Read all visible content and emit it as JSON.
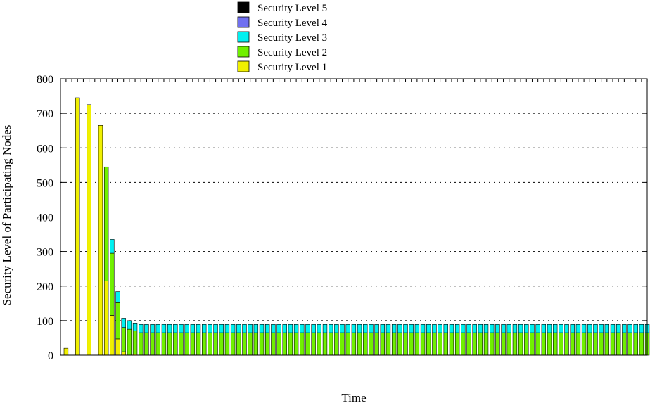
{
  "chart_data": {
    "type": "bar",
    "stacked": true,
    "xlabel": "Time",
    "ylabel": "Security Level of Participating Nodes",
    "ylim": [
      0,
      800
    ],
    "yticks": [
      0,
      100,
      200,
      300,
      400,
      500,
      600,
      700,
      800
    ],
    "grid": "horizontal dotted",
    "legend_position": "top-center",
    "series": [
      {
        "name": "Security Level 5",
        "color": "#000000",
        "values": [
          0,
          0,
          0,
          0,
          0,
          0,
          0,
          0,
          0,
          0,
          0,
          0,
          0,
          0,
          0,
          0,
          0,
          0,
          0,
          0,
          0,
          0,
          0,
          0,
          0,
          0,
          0,
          0,
          0,
          0,
          0,
          0,
          0,
          0,
          0,
          0,
          0,
          0,
          0,
          0,
          0,
          0,
          0,
          0,
          0,
          0,
          0,
          0,
          0,
          0,
          0,
          0,
          0,
          0,
          0,
          0,
          0,
          0,
          0,
          0,
          0,
          0,
          0,
          0,
          0,
          0,
          0,
          0,
          0,
          0,
          0,
          0,
          0,
          0,
          0,
          0,
          0,
          0,
          0,
          0,
          0,
          0,
          0,
          0,
          0,
          0,
          0,
          0,
          0,
          0,
          0,
          0,
          0,
          0,
          0,
          0,
          0,
          0,
          0,
          0,
          0,
          0
        ]
      },
      {
        "name": "Security Level 4",
        "color": "#7070f0",
        "values": [
          0,
          0,
          0,
          0,
          0,
          0,
          0,
          0,
          0,
          0,
          0,
          0,
          0,
          0,
          0,
          0,
          0,
          0,
          0,
          0,
          0,
          0,
          0,
          0,
          0,
          0,
          0,
          0,
          0,
          0,
          0,
          0,
          0,
          0,
          0,
          0,
          0,
          0,
          0,
          0,
          0,
          0,
          0,
          0,
          0,
          0,
          0,
          0,
          0,
          0,
          0,
          0,
          0,
          0,
          0,
          0,
          0,
          0,
          0,
          0,
          0,
          0,
          0,
          0,
          0,
          0,
          0,
          0,
          0,
          0,
          0,
          0,
          0,
          0,
          0,
          0,
          0,
          0,
          0,
          0,
          0,
          0,
          0,
          0,
          0,
          0,
          0,
          0,
          0,
          0,
          0,
          0,
          0,
          0,
          0,
          0,
          0,
          0,
          0,
          0,
          0,
          0
        ]
      },
      {
        "name": "Security Level 3",
        "color": "#00f0f0",
        "values": [
          0,
          0,
          0,
          0,
          0,
          0,
          0,
          0,
          40,
          32,
          27,
          25,
          23,
          24,
          24,
          24,
          24,
          24,
          24,
          24,
          24,
          24,
          24,
          24,
          24,
          24,
          24,
          24,
          24,
          24,
          24,
          24,
          24,
          24,
          24,
          24,
          24,
          24,
          24,
          24,
          24,
          24,
          24,
          24,
          24,
          24,
          24,
          24,
          24,
          24,
          24,
          24,
          24,
          24,
          24,
          24,
          24,
          24,
          24,
          24,
          24,
          24,
          24,
          24,
          24,
          24,
          24,
          24,
          24,
          24,
          24,
          24,
          24,
          24,
          24,
          24,
          24,
          24,
          24,
          24,
          24,
          24,
          24,
          24,
          24,
          24,
          24,
          24,
          24,
          24,
          24,
          24,
          24,
          24,
          24,
          24,
          24,
          24,
          24,
          24,
          24,
          24
        ]
      },
      {
        "name": "Security Level 2",
        "color": "#70f000",
        "values": [
          0,
          0,
          0,
          0,
          0,
          0,
          0,
          330,
          180,
          105,
          70,
          75,
          67,
          65,
          65,
          65,
          65,
          65,
          65,
          65,
          65,
          65,
          65,
          65,
          65,
          65,
          65,
          65,
          65,
          65,
          65,
          65,
          65,
          65,
          65,
          65,
          65,
          65,
          65,
          65,
          65,
          65,
          65,
          65,
          65,
          65,
          65,
          65,
          65,
          65,
          65,
          65,
          65,
          65,
          65,
          65,
          65,
          65,
          65,
          65,
          65,
          65,
          65,
          65,
          65,
          65,
          65,
          65,
          65,
          65,
          65,
          65,
          65,
          65,
          65,
          65,
          65,
          65,
          65,
          65,
          65,
          65,
          65,
          65,
          65,
          65,
          65,
          65,
          65,
          65,
          65,
          65,
          65,
          65,
          65,
          65,
          65,
          65,
          65,
          65,
          65,
          65
        ]
      },
      {
        "name": "Security Level 1",
        "color": "#f0f000",
        "values": [
          20,
          0,
          745,
          0,
          725,
          0,
          665,
          215,
          115,
          47,
          10,
          0,
          3,
          0,
          0,
          0,
          0,
          0,
          0,
          0,
          0,
          0,
          0,
          0,
          0,
          0,
          0,
          0,
          0,
          0,
          0,
          0,
          0,
          0,
          0,
          0,
          0,
          0,
          0,
          0,
          0,
          0,
          0,
          0,
          0,
          0,
          0,
          0,
          0,
          0,
          0,
          0,
          0,
          0,
          0,
          0,
          0,
          0,
          0,
          0,
          0,
          0,
          0,
          0,
          0,
          0,
          0,
          0,
          0,
          0,
          0,
          0,
          0,
          0,
          0,
          0,
          0,
          0,
          0,
          0,
          0,
          0,
          0,
          0,
          0,
          0,
          0,
          0,
          0,
          0,
          0,
          0,
          0,
          0,
          0,
          0,
          0,
          0,
          0,
          0,
          0,
          0
        ]
      }
    ]
  }
}
